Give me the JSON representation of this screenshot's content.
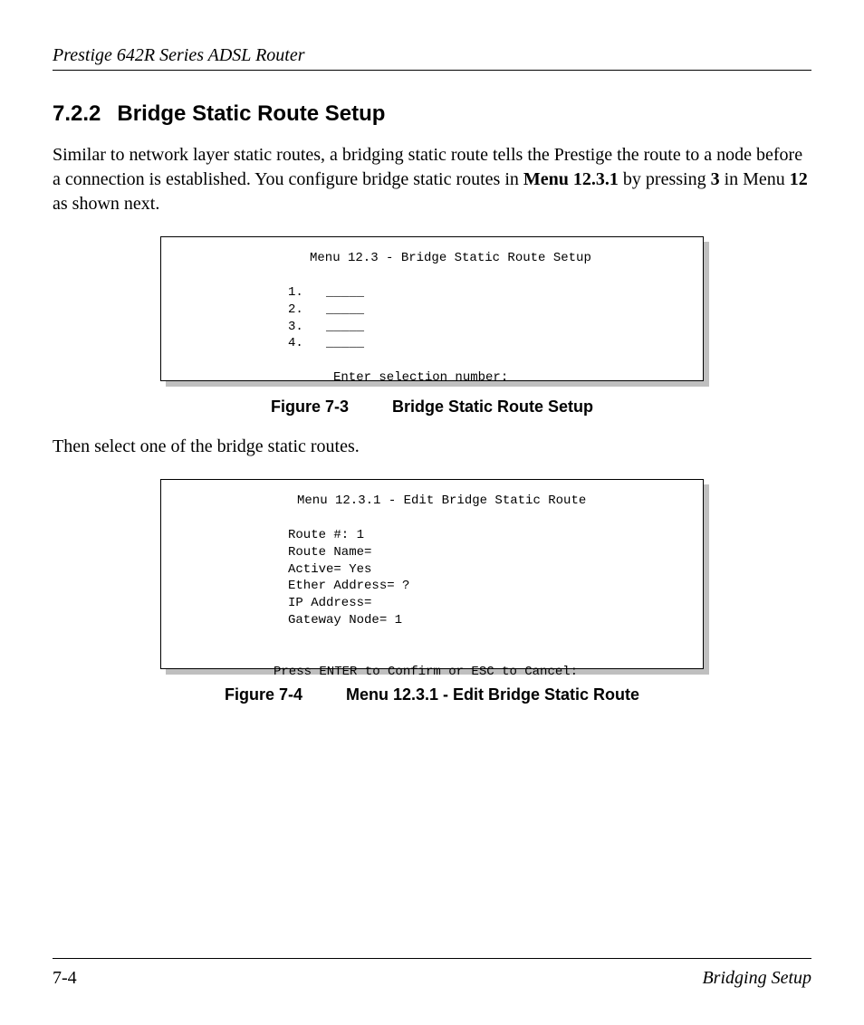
{
  "header": {
    "title": "Prestige 642R Series ADSL Router"
  },
  "section": {
    "number": "7.2.2",
    "title": "Bridge Static Route Setup"
  },
  "paragraph1": {
    "pre": "Similar to network layer static routes, a bridging static route tells the Prestige the route to a node before a connection is established.  You configure bridge static routes in ",
    "bold1": "Menu 12.3.1",
    "mid1": " by pressing ",
    "bold2": "3",
    "mid2": " in Menu ",
    "bold3": "12",
    "post": " as shown next."
  },
  "terminal1": {
    "title": "Menu 12.3 - Bridge Static Route Setup",
    "l1": "1.   _____",
    "l2": "2.   _____",
    "l3": "3.   _____",
    "l4": "4.   _____",
    "prompt": "Enter selection number:"
  },
  "figure1": {
    "num": "Figure 7-3",
    "title": "Bridge Static Route Setup"
  },
  "paragraph2": "Then select one of the bridge static routes.",
  "terminal2": {
    "title": "Menu 12.3.1 - Edit Bridge Static Route",
    "l1": "Route #: 1",
    "l2": "Route Name=",
    "l3": "Active= Yes",
    "l4": "Ether Address= ?",
    "l5": "IP Address=",
    "l6": "Gateway Node= 1",
    "prompt": "Press ENTER to Confirm or ESC to Cancel:"
  },
  "figure2": {
    "num": "Figure 7-4",
    "title": "Menu 12.3.1 - Edit Bridge Static Route"
  },
  "footer": {
    "page": "7-4",
    "title": "Bridging Setup"
  }
}
